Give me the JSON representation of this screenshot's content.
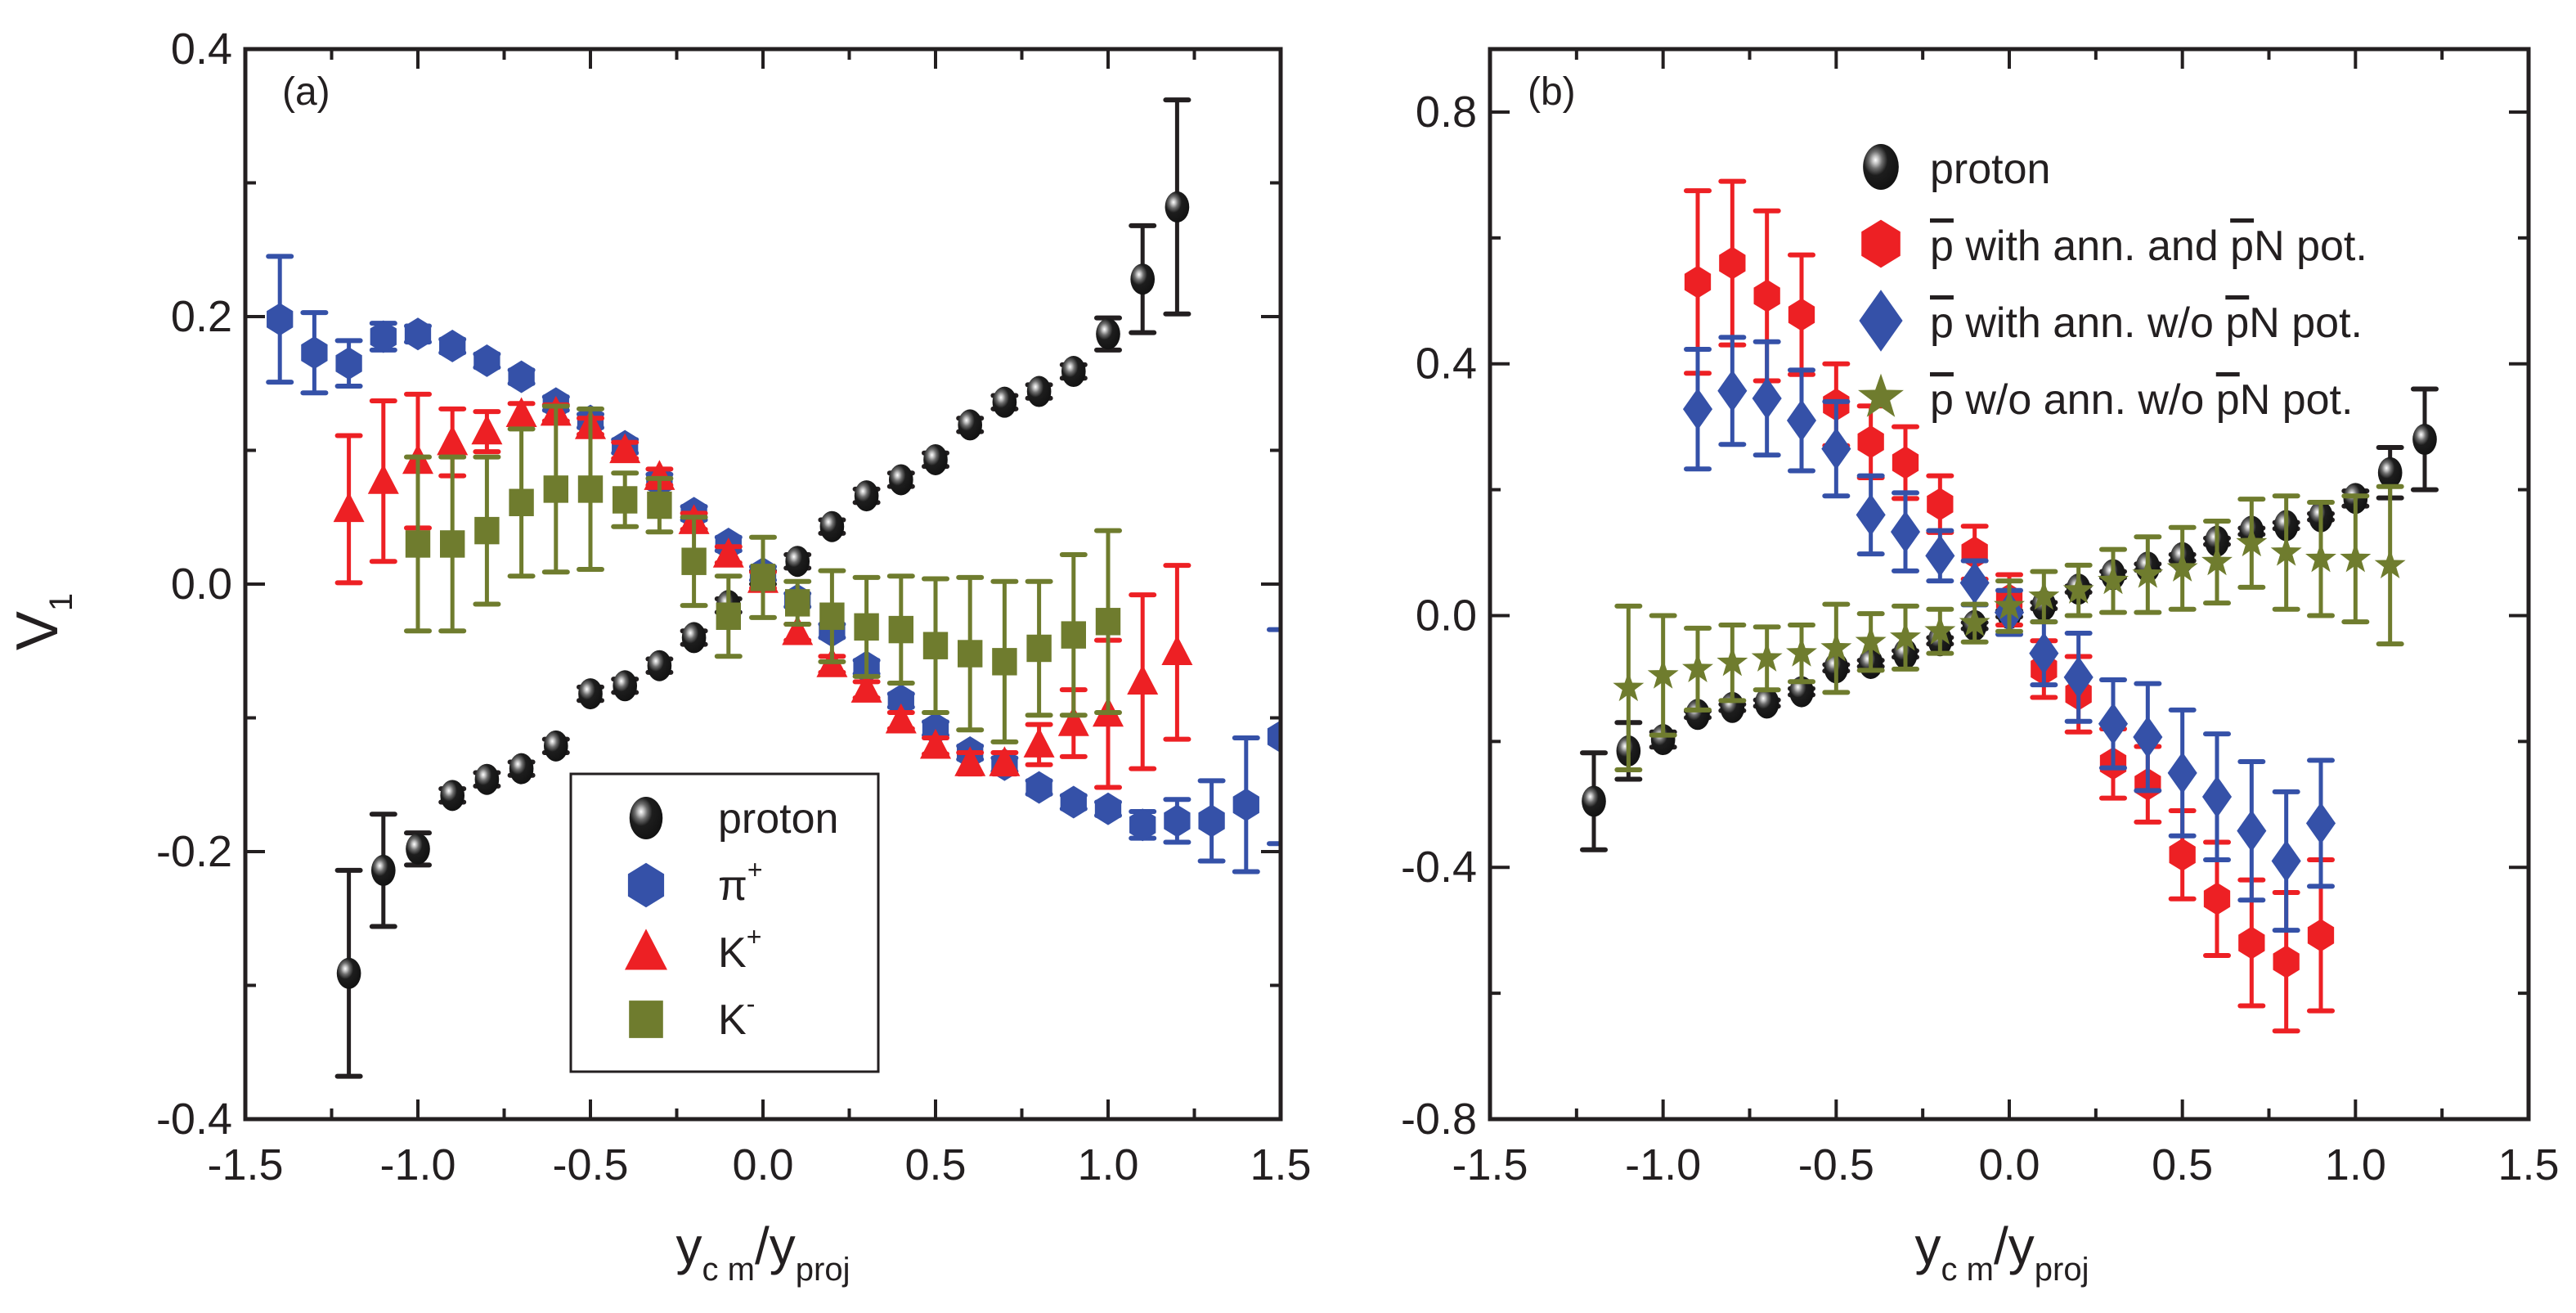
{
  "chart_data": [
    {
      "type": "scatter",
      "panel_label": "(a)",
      "xlabel": {
        "main": "y",
        "sub1": "c m",
        "mid": "/y",
        "sub2": "proj"
      },
      "ylabel": {
        "main": "V",
        "sub": "1"
      },
      "xlim": [
        -1.5,
        1.5
      ],
      "ylim": [
        -0.4,
        0.4
      ],
      "xticks": [
        -1.5,
        -1.0,
        -0.5,
        0.0,
        0.5,
        1.0,
        1.5
      ],
      "xtick_labels": [
        "-1.5",
        "-1.0",
        "-0.5",
        "0.0",
        "0.5",
        "1.0",
        "1.5"
      ],
      "yticks": [
        -0.4,
        -0.2,
        0.0,
        0.2,
        0.4
      ],
      "ytick_labels": [
        "-0.4",
        "-0.2",
        "0.0",
        "0.2",
        "0.4"
      ],
      "grid": false,
      "legend_position": "bottom-center",
      "series": [
        {
          "name": "proton",
          "label_main": "proton",
          "label_sup": "",
          "marker": "ball",
          "color": "#231f20",
          "x": [
            -1.2,
            -1.1,
            -1.0,
            -0.9,
            -0.8,
            -0.7,
            -0.6,
            -0.5,
            -0.4,
            -0.3,
            -0.2,
            -0.1,
            0.0,
            0.1,
            0.2,
            0.3,
            0.4,
            0.5,
            0.6,
            0.7,
            0.8,
            0.9,
            1.0,
            1.1,
            1.2
          ],
          "y": [
            -0.291,
            -0.214,
            -0.198,
            -0.158,
            -0.146,
            -0.138,
            -0.121,
            -0.082,
            -0.076,
            -0.061,
            -0.04,
            -0.016,
            0.005,
            0.017,
            0.043,
            0.066,
            0.078,
            0.093,
            0.119,
            0.136,
            0.144,
            0.159,
            0.187,
            0.228,
            0.282
          ],
          "err": [
            0.077,
            0.042,
            0.012,
            0.005,
            0.005,
            0.005,
            0.005,
            0.005,
            0.005,
            0.005,
            0.005,
            0.005,
            0.005,
            0.005,
            0.005,
            0.005,
            0.005,
            0.005,
            0.005,
            0.005,
            0.005,
            0.005,
            0.012,
            0.04,
            0.08
          ]
        },
        {
          "name": "pi+",
          "label_main": "π",
          "label_sup": "+",
          "marker": "hexagon",
          "color": "#3551a8",
          "x": [
            -1.4,
            -1.3,
            -1.2,
            -1.1,
            -1.0,
            -0.9,
            -0.8,
            -0.7,
            -0.6,
            -0.5,
            -0.4,
            -0.3,
            -0.2,
            -0.1,
            0.0,
            0.1,
            0.2,
            0.3,
            0.4,
            0.5,
            0.6,
            0.7,
            0.8,
            0.9,
            1.0,
            1.1,
            1.2,
            1.3,
            1.4,
            1.5
          ],
          "y": [
            0.198,
            0.173,
            0.165,
            0.185,
            0.187,
            0.178,
            0.167,
            0.155,
            0.135,
            0.122,
            0.103,
            0.077,
            0.053,
            0.03,
            0.008,
            -0.012,
            -0.035,
            -0.062,
            -0.087,
            -0.108,
            -0.126,
            -0.135,
            -0.152,
            -0.163,
            -0.168,
            -0.18,
            -0.177,
            -0.177,
            -0.165,
            -0.114
          ],
          "err": [
            0.047,
            0.03,
            0.017,
            0.01,
            0.006,
            0.005,
            0.005,
            0.005,
            0.005,
            0.005,
            0.005,
            0.005,
            0.005,
            0.005,
            0.005,
            0.005,
            0.005,
            0.005,
            0.005,
            0.005,
            0.005,
            0.005,
            0.005,
            0.005,
            0.005,
            0.01,
            0.016,
            0.03,
            0.05,
            0.08
          ]
        },
        {
          "name": "K+",
          "label_main": "K",
          "label_sup": "+",
          "marker": "triangle",
          "color": "#ed2024",
          "x": [
            -1.2,
            -1.1,
            -1.0,
            -0.9,
            -0.8,
            -0.7,
            -0.6,
            -0.5,
            -0.4,
            -0.3,
            -0.2,
            -0.1,
            0.0,
            0.1,
            0.2,
            0.3,
            0.4,
            0.5,
            0.6,
            0.7,
            0.8,
            0.9,
            1.0,
            1.1,
            1.2
          ],
          "y": [
            0.056,
            0.077,
            0.092,
            0.106,
            0.114,
            0.127,
            0.128,
            0.118,
            0.1,
            0.08,
            0.047,
            0.022,
            0.003,
            -0.036,
            -0.06,
            -0.079,
            -0.102,
            -0.121,
            -0.134,
            -0.134,
            -0.12,
            -0.104,
            -0.097,
            -0.073,
            -0.051
          ],
          "err": [
            0.055,
            0.06,
            0.05,
            0.025,
            0.015,
            0.008,
            0.006,
            0.006,
            0.006,
            0.006,
            0.006,
            0.006,
            0.006,
            0.006,
            0.006,
            0.006,
            0.006,
            0.006,
            0.008,
            0.008,
            0.015,
            0.025,
            0.055,
            0.065,
            0.065
          ]
        },
        {
          "name": "K-",
          "label_main": "K",
          "label_sup": "-",
          "marker": "square",
          "color": "#6f7c2e",
          "x": [
            -1.0,
            -0.9,
            -0.8,
            -0.7,
            -0.6,
            -0.5,
            -0.4,
            -0.3,
            -0.2,
            -0.1,
            0.0,
            0.1,
            0.2,
            0.3,
            0.4,
            0.5,
            0.6,
            0.7,
            0.8,
            0.9,
            1.0
          ],
          "y": [
            0.03,
            0.03,
            0.04,
            0.061,
            0.071,
            0.071,
            0.063,
            0.059,
            0.017,
            -0.024,
            0.005,
            -0.014,
            -0.024,
            -0.032,
            -0.034,
            -0.046,
            -0.052,
            -0.058,
            -0.048,
            -0.038,
            -0.028
          ],
          "err": [
            0.065,
            0.065,
            0.055,
            0.055,
            0.062,
            0.06,
            0.02,
            0.02,
            0.033,
            0.03,
            0.03,
            0.016,
            0.034,
            0.037,
            0.04,
            0.05,
            0.057,
            0.06,
            0.05,
            0.06,
            0.068
          ]
        }
      ]
    },
    {
      "type": "scatter",
      "panel_label": "(b)",
      "xlabel": {
        "main": "y",
        "sub1": "c m",
        "mid": "/y",
        "sub2": "proj"
      },
      "ylabel": null,
      "xlim": [
        -1.5,
        1.5
      ],
      "ylim": [
        -0.8,
        0.9
      ],
      "xticks": [
        -1.5,
        -1.0,
        -0.5,
        0.0,
        0.5,
        1.0,
        1.5
      ],
      "xtick_labels": [
        "-1.5",
        "-1.0",
        "-0.5",
        "0.0",
        "0.5",
        "1.0",
        "1.5"
      ],
      "yticks": [
        -0.8,
        -0.4,
        0.0,
        0.4,
        0.8
      ],
      "ytick_labels": [
        "-0.8",
        "-0.4",
        "0.0",
        "0.4",
        "0.8"
      ],
      "grid": false,
      "legend_position": "top-right",
      "series": [
        {
          "name": "proton",
          "label_parts": [
            "proton"
          ],
          "marker": "ball",
          "color": "#231f20",
          "x": [
            -1.2,
            -1.1,
            -1.0,
            -0.9,
            -0.8,
            -0.7,
            -0.6,
            -0.5,
            -0.4,
            -0.3,
            -0.2,
            -0.1,
            0.0,
            0.1,
            0.2,
            0.3,
            0.4,
            0.5,
            0.6,
            0.7,
            0.8,
            0.9,
            1.0,
            1.1,
            1.2
          ],
          "y": [
            -0.295,
            -0.215,
            -0.197,
            -0.157,
            -0.146,
            -0.139,
            -0.121,
            -0.083,
            -0.076,
            -0.061,
            -0.04,
            -0.016,
            0.003,
            0.016,
            0.042,
            0.065,
            0.077,
            0.092,
            0.118,
            0.134,
            0.143,
            0.157,
            0.186,
            0.227,
            0.28
          ],
          "err": [
            0.077,
            0.045,
            0.012,
            0.005,
            0.005,
            0.005,
            0.005,
            0.005,
            0.005,
            0.005,
            0.005,
            0.005,
            0.005,
            0.005,
            0.005,
            0.005,
            0.005,
            0.005,
            0.005,
            0.005,
            0.005,
            0.005,
            0.012,
            0.04,
            0.08
          ]
        },
        {
          "name": "pbar with ann. and pbarN pot.",
          "label_parts": [
            "p",
            " with ann. and ",
            "p",
            "N pot."
          ],
          "marker": "hexagon",
          "color": "#ed2024",
          "x": [
            -0.9,
            -0.8,
            -0.7,
            -0.6,
            -0.5,
            -0.4,
            -0.3,
            -0.2,
            -0.1,
            0.0,
            0.1,
            0.2,
            0.3,
            0.4,
            0.5,
            0.6,
            0.7,
            0.8,
            0.9
          ],
          "y": [
            0.53,
            0.56,
            0.508,
            0.478,
            0.335,
            0.276,
            0.243,
            0.177,
            0.1,
            0.025,
            -0.085,
            -0.125,
            -0.235,
            -0.268,
            -0.38,
            -0.45,
            -0.52,
            -0.55,
            -0.508
          ],
          "err": [
            0.145,
            0.13,
            0.135,
            0.095,
            0.065,
            0.057,
            0.057,
            0.045,
            0.042,
            0.04,
            0.045,
            0.06,
            0.055,
            0.06,
            0.07,
            0.09,
            0.1,
            0.11,
            0.12
          ]
        },
        {
          "name": "pbar with ann. w/o pbarN pot.",
          "label_parts": [
            "p",
            " with ann. w/o ",
            "p",
            "N pot."
          ],
          "marker": "diamond",
          "color": "#3551a8",
          "x": [
            -0.9,
            -0.8,
            -0.7,
            -0.6,
            -0.5,
            -0.4,
            -0.3,
            -0.2,
            -0.1,
            0.0,
            0.1,
            0.2,
            0.3,
            0.4,
            0.5,
            0.6,
            0.7,
            0.8,
            0.9
          ],
          "y": [
            0.328,
            0.357,
            0.345,
            0.31,
            0.265,
            0.16,
            0.133,
            0.095,
            0.052,
            0.005,
            -0.06,
            -0.098,
            -0.172,
            -0.193,
            -0.25,
            -0.288,
            -0.342,
            -0.39,
            -0.33
          ],
          "err": [
            0.095,
            0.085,
            0.09,
            0.08,
            0.075,
            0.062,
            0.062,
            0.04,
            0.035,
            0.035,
            0.05,
            0.07,
            0.07,
            0.085,
            0.1,
            0.1,
            0.11,
            0.11,
            0.1
          ]
        },
        {
          "name": "pbar w/o ann. w/o pbarN pot.",
          "label_parts": [
            "p",
            " w/o ann. w/o ",
            "p",
            "N pot."
          ],
          "marker": "star",
          "color": "#6f7c2e",
          "x": [
            -1.1,
            -1.0,
            -0.9,
            -0.8,
            -0.7,
            -0.6,
            -0.5,
            -0.4,
            -0.3,
            -0.2,
            -0.1,
            0.0,
            0.1,
            0.2,
            0.3,
            0.4,
            0.5,
            0.6,
            0.7,
            0.8,
            0.9,
            1.0,
            1.1
          ],
          "y": [
            -0.115,
            -0.095,
            -0.085,
            -0.075,
            -0.068,
            -0.06,
            -0.052,
            -0.042,
            -0.035,
            -0.025,
            -0.012,
            0.015,
            0.03,
            0.04,
            0.055,
            0.065,
            0.075,
            0.085,
            0.115,
            0.1,
            0.09,
            0.09,
            0.08
          ],
          "err": [
            0.13,
            0.095,
            0.065,
            0.06,
            0.05,
            0.045,
            0.07,
            0.045,
            0.05,
            0.035,
            0.03,
            0.04,
            0.04,
            0.04,
            0.05,
            0.06,
            0.065,
            0.065,
            0.07,
            0.09,
            0.09,
            0.1,
            0.125
          ]
        }
      ]
    }
  ]
}
